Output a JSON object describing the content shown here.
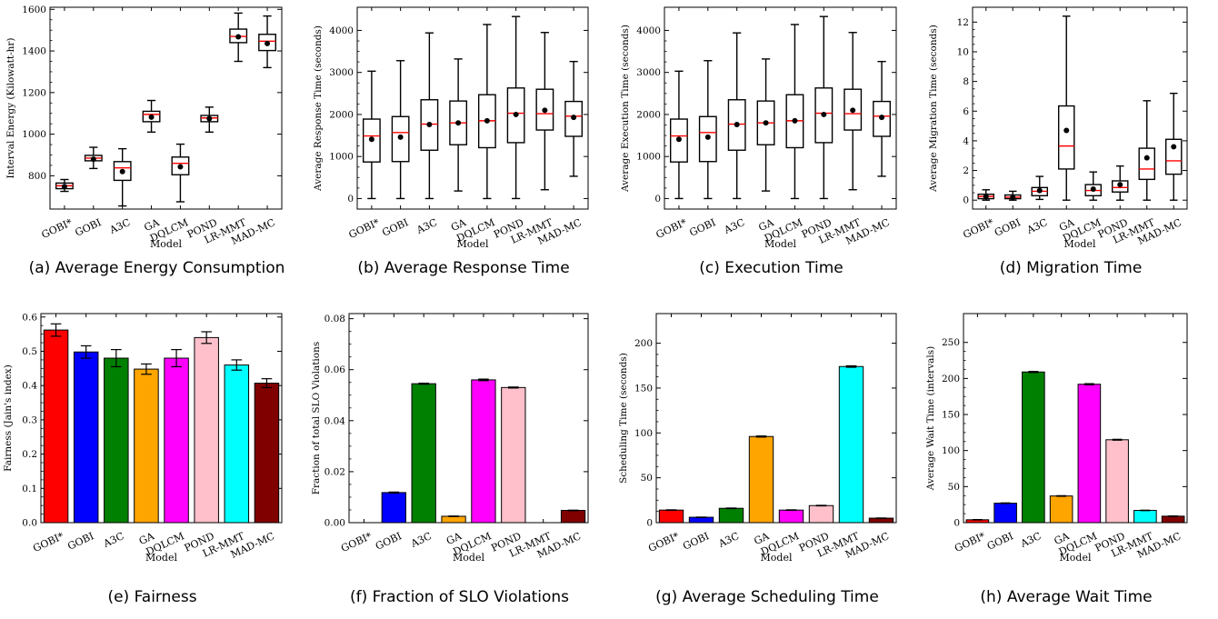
{
  "categories": [
    "GOBI*",
    "GOBI",
    "A3C",
    "GA",
    "DQLCM",
    "POND",
    "LR-MMT",
    "MAD-MC"
  ],
  "bar_colors": [
    "#ff0000",
    "#0000ff",
    "#008000",
    "#ffa500",
    "#ff00ff",
    "#ffc0cb",
    "#00ffff",
    "#800000"
  ],
  "chart_data": [
    {
      "id": "a",
      "type": "box",
      "caption": "(a)  Average Energy Consumption",
      "ylabel": "Interval Energy (Kilowatt-hr)",
      "xlabel": "Model",
      "ylim": [
        640,
        1610
      ],
      "yticks": [
        800,
        1000,
        1200,
        1400,
        1600
      ],
      "boxes": [
        {
          "whislo": 725,
          "q1": 738,
          "med": 752,
          "q3": 765,
          "whishi": 782,
          "mean": 748
        },
        {
          "whislo": 835,
          "q1": 872,
          "med": 885,
          "q3": 898,
          "whishi": 937,
          "mean": 880
        },
        {
          "whislo": 655,
          "q1": 778,
          "med": 838,
          "q3": 868,
          "whishi": 930,
          "mean": 820
        },
        {
          "whislo": 1010,
          "q1": 1060,
          "med": 1095,
          "q3": 1110,
          "whishi": 1162,
          "mean": 1082
        },
        {
          "whislo": 675,
          "q1": 805,
          "med": 860,
          "q3": 890,
          "whishi": 952,
          "mean": 843
        },
        {
          "whislo": 1010,
          "q1": 1060,
          "med": 1078,
          "q3": 1090,
          "whishi": 1130,
          "mean": 1075
        },
        {
          "whislo": 1350,
          "q1": 1440,
          "med": 1470,
          "q3": 1505,
          "whishi": 1582,
          "mean": 1468
        },
        {
          "whislo": 1320,
          "q1": 1402,
          "med": 1447,
          "q3": 1480,
          "whishi": 1568,
          "mean": 1436
        }
      ]
    },
    {
      "id": "b",
      "type": "box",
      "caption": "(b)  Average Response Time",
      "ylabel": "Average Response Time (seconds)",
      "xlabel": "Model",
      "ylim": [
        -250,
        4550
      ],
      "yticks": [
        0,
        1000,
        2000,
        3000,
        4000
      ],
      "boxes": [
        {
          "whislo": 0,
          "q1": 870,
          "med": 1490,
          "q3": 1890,
          "whishi": 3030,
          "mean": 1410
        },
        {
          "whislo": 0,
          "q1": 880,
          "med": 1570,
          "q3": 1950,
          "whishi": 3280,
          "mean": 1460
        },
        {
          "whislo": 0,
          "q1": 1150,
          "med": 1770,
          "q3": 2350,
          "whishi": 3940,
          "mean": 1760
        },
        {
          "whislo": 180,
          "q1": 1280,
          "med": 1800,
          "q3": 2320,
          "whishi": 3320,
          "mean": 1800
        },
        {
          "whislo": 0,
          "q1": 1210,
          "med": 1850,
          "q3": 2470,
          "whishi": 4140,
          "mean": 1850
        },
        {
          "whislo": 0,
          "q1": 1330,
          "med": 2030,
          "q3": 2630,
          "whishi": 4330,
          "mean": 2000
        },
        {
          "whislo": 210,
          "q1": 1630,
          "med": 2020,
          "q3": 2600,
          "whishi": 3950,
          "mean": 2100
        },
        {
          "whislo": 530,
          "q1": 1480,
          "med": 1960,
          "q3": 2310,
          "whishi": 3260,
          "mean": 1930
        }
      ]
    },
    {
      "id": "c",
      "type": "box",
      "caption": "(c)  Execution Time",
      "ylabel": "Average Execution Time (seconds)",
      "xlabel": "Model",
      "ylim": [
        -250,
        4550
      ],
      "yticks": [
        0,
        1000,
        2000,
        3000,
        4000
      ],
      "boxes": [
        {
          "whislo": 0,
          "q1": 870,
          "med": 1490,
          "q3": 1890,
          "whishi": 3030,
          "mean": 1410
        },
        {
          "whislo": 0,
          "q1": 880,
          "med": 1570,
          "q3": 1950,
          "whishi": 3280,
          "mean": 1460
        },
        {
          "whislo": 0,
          "q1": 1150,
          "med": 1770,
          "q3": 2350,
          "whishi": 3940,
          "mean": 1760
        },
        {
          "whislo": 180,
          "q1": 1280,
          "med": 1800,
          "q3": 2320,
          "whishi": 3320,
          "mean": 1800
        },
        {
          "whislo": 0,
          "q1": 1210,
          "med": 1850,
          "q3": 2470,
          "whishi": 4140,
          "mean": 1850
        },
        {
          "whislo": 0,
          "q1": 1330,
          "med": 2030,
          "q3": 2630,
          "whishi": 4330,
          "mean": 2000
        },
        {
          "whislo": 210,
          "q1": 1630,
          "med": 2020,
          "q3": 2600,
          "whishi": 3950,
          "mean": 2100
        },
        {
          "whislo": 530,
          "q1": 1480,
          "med": 1960,
          "q3": 2310,
          "whishi": 3260,
          "mean": 1930
        }
      ]
    },
    {
      "id": "d",
      "type": "box",
      "caption": "(d)  Migration Time",
      "ylabel": "Average Migration Time (seconds)",
      "xlabel": "Model",
      "ylim": [
        -0.6,
        13
      ],
      "yticks": [
        0,
        2,
        4,
        6,
        8,
        10,
        12
      ],
      "boxes": [
        {
          "whislo": 0,
          "q1": 0.1,
          "med": 0.25,
          "q3": 0.4,
          "whishi": 0.7,
          "mean": 0.25
        },
        {
          "whislo": 0,
          "q1": 0.1,
          "med": 0.2,
          "q3": 0.35,
          "whishi": 0.6,
          "mean": 0.2
        },
        {
          "whislo": 0.05,
          "q1": 0.3,
          "med": 0.6,
          "q3": 0.85,
          "whishi": 1.6,
          "mean": 0.65
        },
        {
          "whislo": 0,
          "q1": 2.1,
          "med": 3.65,
          "q3": 6.35,
          "whishi": 12.4,
          "mean": 4.7
        },
        {
          "whislo": 0,
          "q1": 0.3,
          "med": 0.65,
          "q3": 1.05,
          "whishi": 1.9,
          "mean": 0.75
        },
        {
          "whislo": 0,
          "q1": 0.55,
          "med": 0.85,
          "q3": 1.3,
          "whishi": 2.3,
          "mean": 1.05
        },
        {
          "whislo": 0,
          "q1": 1.4,
          "med": 2.1,
          "q3": 3.5,
          "whishi": 6.7,
          "mean": 2.85
        },
        {
          "whislo": 0,
          "q1": 1.75,
          "med": 2.65,
          "q3": 4.1,
          "whishi": 7.2,
          "mean": 3.6
        }
      ]
    },
    {
      "id": "e",
      "type": "bar",
      "caption": "(e)  Fairness",
      "ylabel": "Fairness (Jain's index)",
      "xlabel": "Model",
      "ylim": [
        0,
        0.61
      ],
      "yticks": [
        0.0,
        0.1,
        0.2,
        0.3,
        0.4,
        0.5,
        0.6
      ],
      "values": [
        0.562,
        0.498,
        0.48,
        0.448,
        0.48,
        0.54,
        0.46,
        0.407
      ],
      "errors": [
        0.018,
        0.018,
        0.025,
        0.015,
        0.025,
        0.017,
        0.015,
        0.013
      ]
    },
    {
      "id": "f",
      "type": "bar",
      "caption": "(f)  Fraction of SLO Violations",
      "ylabel": "Fraction of total SLO Violations",
      "xlabel": "Model",
      "ylim": [
        0,
        0.082
      ],
      "yticks": [
        0.0,
        0.02,
        0.04,
        0.06,
        0.08
      ],
      "values": [
        0.0,
        0.0118,
        0.0545,
        0.0025,
        0.056,
        0.053,
        0.0,
        0.0048
      ],
      "errors": [
        0,
        0.0002,
        0.0002,
        0.0001,
        0.0003,
        0.0002,
        0,
        0.0001
      ]
    },
    {
      "id": "g",
      "type": "bar",
      "caption": "(g)  Average Scheduling Time",
      "ylabel": "Scheduling Time (seconds)",
      "xlabel": "Model",
      "ylim": [
        0,
        233
      ],
      "yticks": [
        0,
        50,
        100,
        150,
        200
      ],
      "values": [
        14,
        6,
        16,
        96,
        14,
        19,
        174,
        5
      ],
      "errors": [
        0.3,
        0.2,
        0.3,
        0.6,
        0.3,
        0.3,
        0.8,
        0.2
      ]
    },
    {
      "id": "h",
      "type": "bar",
      "caption": "(h)  Average Wait Time",
      "ylabel": "Average Wait Time (intervals)",
      "xlabel": "Model",
      "ylim": [
        0,
        290
      ],
      "yticks": [
        0,
        50,
        100,
        150,
        200,
        250
      ],
      "values": [
        4,
        27,
        209,
        37,
        192,
        115,
        17,
        9
      ],
      "errors": [
        0.3,
        0.4,
        0.8,
        0.4,
        0.8,
        0.6,
        0.3,
        0.3
      ]
    }
  ]
}
